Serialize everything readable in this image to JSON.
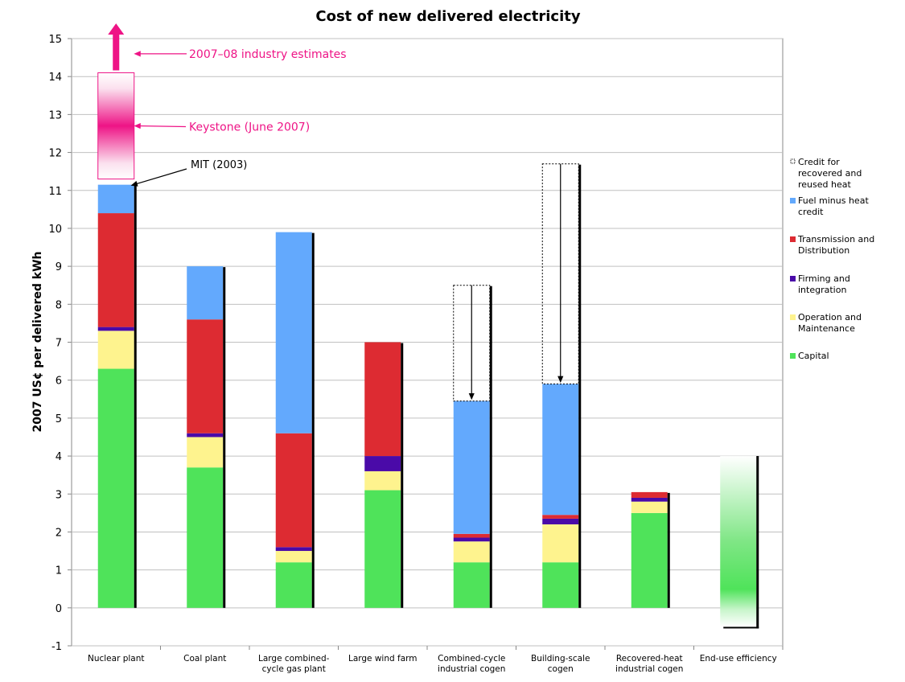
{
  "chart_data": {
    "type": "bar",
    "stacked": true,
    "title": "Cost of new delivered electricity",
    "ylabel": "2007 US¢ per delivered kWh",
    "xlabel": "",
    "ylim": [
      -1,
      15
    ],
    "yticks": [
      -1,
      0,
      1,
      2,
      3,
      4,
      5,
      6,
      7,
      8,
      9,
      10,
      11,
      12,
      13,
      14,
      15
    ],
    "grid": true,
    "legend_placement": "right",
    "categories": [
      [
        "Nuclear plant"
      ],
      [
        "Coal plant"
      ],
      [
        "Large combined-",
        "cycle gas plant"
      ],
      [
        "Large wind farm"
      ],
      [
        "Combined-cycle",
        "industrial cogen"
      ],
      [
        "Building-scale",
        "cogen"
      ],
      [
        "Recovered-heat",
        "industrial cogen"
      ],
      [
        "End-use efficiency"
      ]
    ],
    "series": [
      {
        "name": "Capital",
        "color": "#4fe35a",
        "values": [
          6.3,
          3.7,
          1.2,
          3.1,
          1.2,
          1.2,
          2.5,
          0
        ]
      },
      {
        "name": "Operation and Maintenance",
        "color": "#fef38e",
        "values": [
          1.0,
          0.8,
          0.3,
          0.5,
          0.55,
          1.0,
          0.3,
          0
        ]
      },
      {
        "name": "Firming and integration",
        "color": "#4a0aa8",
        "values": [
          0.1,
          0.1,
          0.1,
          0.4,
          0.1,
          0.15,
          0.1,
          0
        ]
      },
      {
        "name": "Transmission and Distribution",
        "color": "#dd2b32",
        "values": [
          3.0,
          3.0,
          3.0,
          3.0,
          0.1,
          0.1,
          0.15,
          0
        ]
      },
      {
        "name": "Fuel minus heat credit",
        "color": "#63a9fd",
        "values": [
          0.75,
          1.4,
          5.3,
          0,
          3.5,
          3.45,
          0,
          0
        ]
      }
    ],
    "heat_credit": {
      "name": "Credit for recovered and reused heat",
      "from": [
        null,
        null,
        null,
        null,
        8.5,
        11.7,
        null,
        null
      ]
    },
    "end_use_efficiency_range": [
      -0.5,
      4.0
    ],
    "annotations": {
      "industry": {
        "text": "2007–08 industry estimates",
        "value": 14.6,
        "arrow_to": 15.4
      },
      "keystone": {
        "text": "Keystone (June 2007)",
        "range": [
          11.3,
          14.1
        ],
        "center": 12.7
      },
      "mit": {
        "text": "MIT (2003)",
        "value": 11.15
      }
    },
    "colors": {
      "annotation": "#ee1486",
      "grid": "#c0c0c0"
    }
  }
}
